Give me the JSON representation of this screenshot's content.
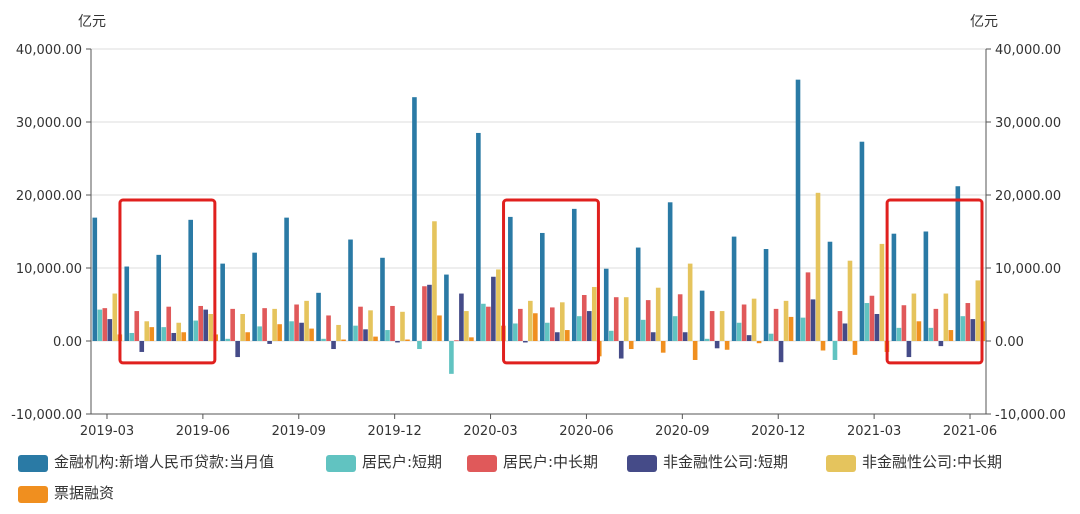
{
  "chart_data": {
    "type": "bar",
    "unit_left": "亿元",
    "unit_right": "亿元",
    "ylim": [
      -10000,
      40000
    ],
    "yticks": [
      "-10,000.00",
      "0.00",
      "10,000.00",
      "20,000.00",
      "30,000.00",
      "40,000.00"
    ],
    "ytick_values": [
      -10000,
      0,
      10000,
      20000,
      30000,
      40000
    ],
    "grid": true,
    "legend_position": "bottom-left",
    "categories": [
      "2019-03",
      "2019-04",
      "2019-05",
      "2019-06",
      "2019-07",
      "2019-08",
      "2019-09",
      "2019-10",
      "2019-11",
      "2019-12",
      "2020-01",
      "2020-02",
      "2020-03",
      "2020-04",
      "2020-05",
      "2020-06",
      "2020-07",
      "2020-08",
      "2020-09",
      "2020-10",
      "2020-11",
      "2020-12",
      "2021-01",
      "2021-02",
      "2021-03",
      "2021-04",
      "2021-05",
      "2021-06"
    ],
    "xtick_labels": [
      "2019-03",
      "2019-06",
      "2019-09",
      "2019-12",
      "2020-03",
      "2020-06",
      "2020-09",
      "2020-12",
      "2021-03",
      "2021-06"
    ],
    "xtick_index": [
      0,
      3,
      6,
      9,
      12,
      15,
      18,
      21,
      24,
      27
    ],
    "series": [
      {
        "name": "金融机构:新增人民币贷款:当月值",
        "color": "#2a7aa5",
        "values": [
          16900,
          10200,
          11800,
          16600,
          10600,
          12100,
          16900,
          6600,
          13900,
          11400,
          33400,
          9100,
          28500,
          17000,
          14800,
          18100,
          9900,
          12800,
          19000,
          6900,
          14300,
          12600,
          35800,
          13600,
          27300,
          14700,
          15000,
          21200
        ]
      },
      {
        "name": "居民户:短期",
        "color": "#61c3c1",
        "values": [
          4300,
          1100,
          1900,
          2800,
          300,
          2000,
          2700,
          300,
          2100,
          1500,
          -1100,
          -4500,
          5100,
          2400,
          2500,
          3400,
          1400,
          2900,
          3400,
          300,
          2500,
          1000,
          3200,
          -2600,
          5200,
          1800,
          1800,
          3400
        ]
      },
      {
        "name": "居民户:中长期",
        "color": "#e0595a",
        "values": [
          4500,
          4100,
          4700,
          4800,
          4400,
          4500,
          5000,
          3500,
          4700,
          4800,
          7500,
          100,
          4700,
          4400,
          4600,
          6300,
          6000,
          5600,
          6400,
          4100,
          5000,
          4400,
          9400,
          4100,
          6200,
          4900,
          4400,
          5200
        ]
      },
      {
        "name": "非金融性公司:短期",
        "color": "#454b88",
        "values": [
          3000,
          -1500,
          1100,
          4300,
          -2200,
          -400,
          2500,
          -1100,
          1600,
          -200,
          7700,
          6500,
          8800,
          -200,
          1200,
          4100,
          -2400,
          1200,
          1200,
          -1000,
          800,
          -2900,
          5700,
          2400,
          3700,
          -2200,
          -700,
          3000
        ]
      },
      {
        "name": "非金融性公司:中长期",
        "color": "#e5c45d",
        "values": [
          6500,
          2700,
          2500,
          3700,
          3700,
          4400,
          5500,
          2200,
          4200,
          4000,
          16400,
          4100,
          9800,
          5500,
          5300,
          7400,
          6000,
          7300,
          10600,
          4100,
          5800,
          5500,
          20300,
          11000,
          13300,
          6500,
          6500,
          8300
        ]
      },
      {
        "name": "票据融资",
        "color": "#f08f1f",
        "values": [
          900,
          1900,
          1200,
          900,
          1200,
          2300,
          1700,
          200,
          600,
          200,
          3500,
          500,
          2100,
          3800,
          1500,
          -2100,
          -1100,
          -1600,
          -2600,
          -1200,
          -300,
          3300,
          -1300,
          -1900,
          -1500,
          2700,
          1500,
          2700
        ]
      }
    ],
    "annotations": {
      "highlight_boxes": [
        {
          "from": "2019-04",
          "to": "2019-06",
          "color": "#e0201e"
        },
        {
          "from": "2020-04",
          "to": "2020-06",
          "color": "#e0201e"
        },
        {
          "from": "2021-04",
          "to": "2021-06",
          "color": "#e0201e"
        }
      ]
    }
  }
}
